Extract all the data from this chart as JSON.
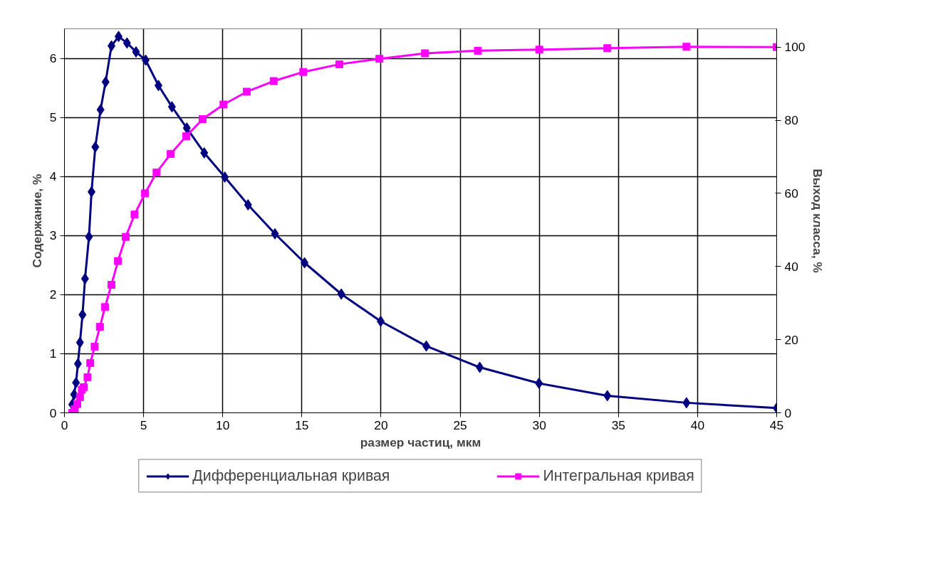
{
  "chart_data": {
    "type": "line",
    "xlabel": "размер частиц, мкм",
    "ylabel": "Содержание, %",
    "y2label": "Выход класса, %",
    "xlim": [
      0,
      45
    ],
    "xticks": [
      0,
      5,
      10,
      15,
      20,
      25,
      30,
      35,
      40,
      45
    ],
    "ylim": [
      0,
      6.5
    ],
    "yticks": [
      0,
      1,
      2,
      3,
      4,
      5,
      6
    ],
    "y2lim": [
      0,
      105
    ],
    "y2ticks": [
      0,
      20,
      40,
      60,
      80,
      100
    ],
    "grid": true,
    "legend": "bottom",
    "series": [
      {
        "name": "Дифференциальная кривая",
        "color": "#000080",
        "marker": "diamond",
        "x": [
          0.49,
          0.61,
          0.73,
          0.85,
          0.98,
          1.14,
          1.3,
          1.55,
          1.71,
          1.95,
          2.28,
          2.6,
          2.97,
          3.42,
          3.95,
          4.52,
          5.13,
          5.94,
          6.79,
          7.73,
          8.83,
          10.13,
          11.6,
          13.3,
          15.17,
          17.49,
          19.98,
          22.86,
          26.24,
          29.98,
          34.3,
          39.3,
          45.0
        ],
        "values": [
          0.14,
          0.31,
          0.51,
          0.83,
          1.19,
          1.66,
          2.27,
          2.98,
          3.74,
          4.5,
          5.13,
          5.6,
          6.21,
          6.37,
          6.26,
          6.11,
          5.97,
          5.54,
          5.18,
          4.82,
          4.4,
          3.99,
          3.52,
          3.03,
          2.54,
          2.01,
          1.55,
          1.13,
          0.77,
          0.5,
          0.29,
          0.17,
          0.08
        ]
      },
      {
        "name": "Интегральная кривая",
        "color": "#ff00ff",
        "marker": "square",
        "axis": "y2",
        "x": [
          0.49,
          0.65,
          0.81,
          0.98,
          1.1,
          1.22,
          1.46,
          1.63,
          1.91,
          2.24,
          2.56,
          2.97,
          3.38,
          3.87,
          4.43,
          5.09,
          5.82,
          6.71,
          7.69,
          8.73,
          10.05,
          11.52,
          13.22,
          15.09,
          17.37,
          19.9,
          22.78,
          26.12,
          30.0,
          34.3,
          39.3,
          45.0
        ],
        "values": [
          0,
          1,
          2.4,
          4.3,
          6.3,
          7,
          9.7,
          13.6,
          18.1,
          23.5,
          28.9,
          35.0,
          41.5,
          48.1,
          54.2,
          60.0,
          65.7,
          70.8,
          75.6,
          80.3,
          84.3,
          87.8,
          90.7,
          93.2,
          95.3,
          96.8,
          98.3,
          99.0,
          99.3,
          99.7,
          100.1,
          100.0
        ]
      }
    ]
  }
}
